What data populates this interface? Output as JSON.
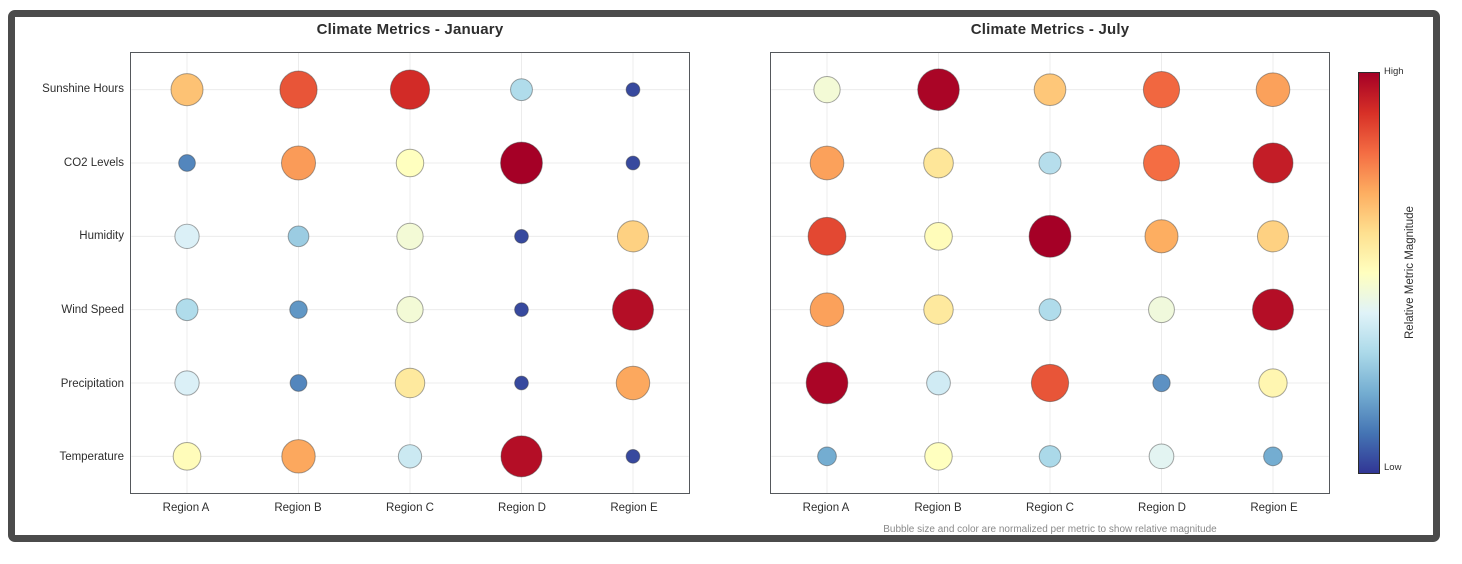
{
  "chart_data": [
    {
      "type": "bubble-matrix",
      "title": "Climate Metrics - January",
      "x_categories": [
        "Region A",
        "Region B",
        "Region C",
        "Region D",
        "Region E"
      ],
      "y_categories": [
        "Sunshine Hours",
        "CO2 Levels",
        "Humidity",
        "Wind Speed",
        "Precipitation",
        "Temperature"
      ],
      "values_normalized": [
        [
          0.66,
          0.84,
          0.91,
          0.31,
          0.03
        ],
        [
          0.13,
          0.73,
          0.5,
          1.0,
          0.03
        ],
        [
          0.39,
          0.27,
          0.46,
          0.03,
          0.63
        ],
        [
          0.31,
          0.16,
          0.46,
          0.03,
          0.97
        ],
        [
          0.39,
          0.13,
          0.57,
          0.03,
          0.71
        ],
        [
          0.51,
          0.71,
          0.36,
          0.97,
          0.03
        ]
      ],
      "encoding": "bubble size and color both encode the normalized value (0=Low, 1=High) using a red-yellow-blue reversed colormap",
      "grid": true,
      "legend_position": "shared colorbar at far right"
    },
    {
      "type": "bubble-matrix",
      "title": "Climate Metrics - July",
      "x_categories": [
        "Region A",
        "Region B",
        "Region C",
        "Region D",
        "Region E"
      ],
      "y_categories": [
        "Sunshine Hours",
        "CO2 Levels",
        "Humidity",
        "Wind Speed",
        "Precipitation",
        "Temperature"
      ],
      "values_normalized": [
        [
          0.46,
          0.99,
          0.65,
          0.81,
          0.72
        ],
        [
          0.72,
          0.58,
          0.32,
          0.8,
          0.94
        ],
        [
          0.86,
          0.51,
          1.0,
          0.7,
          0.63
        ],
        [
          0.72,
          0.57,
          0.31,
          0.45,
          0.97
        ],
        [
          0.99,
          0.37,
          0.84,
          0.15,
          0.53
        ],
        [
          0.2,
          0.5,
          0.3,
          0.41,
          0.2
        ]
      ],
      "encoding": "bubble size and color both encode the normalized value (0=Low, 1=High) using a red-yellow-blue reversed colormap",
      "grid": true,
      "legend_position": "shared colorbar at far right"
    }
  ],
  "colorbar": {
    "label": "Relative Metric Magnitude",
    "high_label": "High",
    "low_label": "Low",
    "colormap_low_to_high": [
      "#313695",
      "#4575b4",
      "#74add1",
      "#abd9e9",
      "#e0f3f8",
      "#ffffbf",
      "#fee090",
      "#fdae61",
      "#f46d43",
      "#d73027",
      "#a50026"
    ]
  },
  "caption": "Bubble size and color are normalized per metric to show relative magnitude",
  "style": {
    "frame_border_color": "#4b4b4b",
    "plot_border_color": "#55585c",
    "gridline_color": "#ececec",
    "bubble_stroke_color": "rgba(60,60,60,0.45)",
    "background": "#ffffff"
  }
}
